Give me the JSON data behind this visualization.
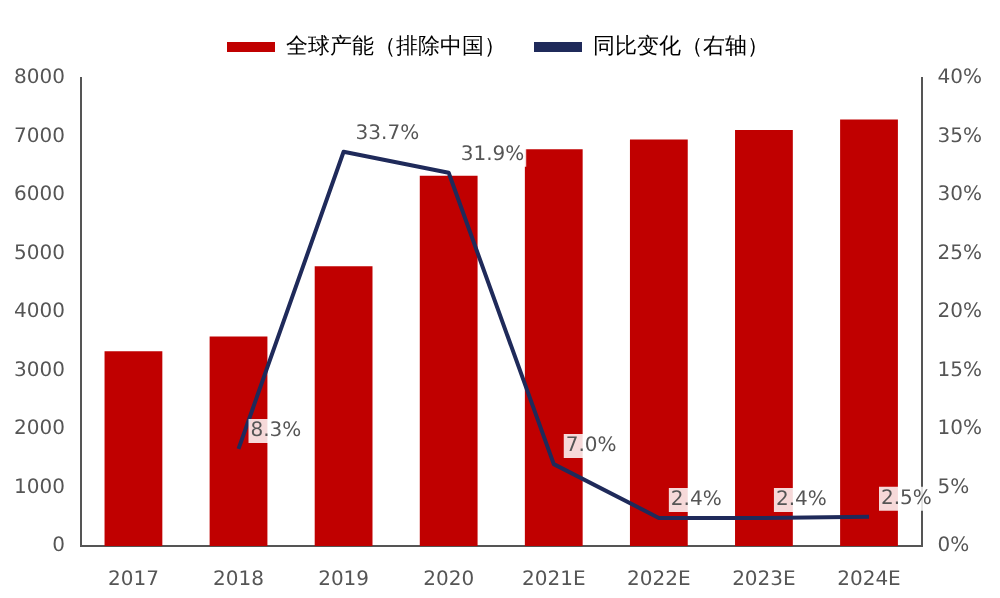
{
  "chart_data": {
    "type": "bar",
    "categories": [
      "2017",
      "2018",
      "2019",
      "2020",
      "2021E",
      "2022E",
      "2023E",
      "2024E"
    ],
    "series": [
      {
        "name": "全球产能（排除中国）",
        "type": "bar",
        "color": "#c00000",
        "values": [
          3330,
          3580,
          4780,
          6330,
          6780,
          6950,
          7110,
          7290
        ]
      },
      {
        "name": "同比变化（右轴）",
        "type": "line",
        "axis": "y2",
        "color": "#1f2a5a",
        "values": [
          null,
          8.3,
          33.7,
          31.9,
          7.0,
          2.4,
          2.4,
          2.5
        ],
        "value_labels": [
          null,
          "8.3%",
          "33.7%",
          "31.9%",
          "7.0%",
          "2.4%",
          "2.4%",
          "2.5%"
        ]
      }
    ],
    "ylim": [
      0,
      8000
    ],
    "yticks": [
      0,
      1000,
      2000,
      3000,
      4000,
      5000,
      6000,
      7000,
      8000
    ],
    "y2lim": [
      0,
      40
    ],
    "y2ticks": [
      {
        "value": 0,
        "label": "0%"
      },
      {
        "value": 5,
        "label": "5%"
      },
      {
        "value": 10,
        "label": "10%"
      },
      {
        "value": 15,
        "label": "15%"
      },
      {
        "value": 20,
        "label": "20%"
      },
      {
        "value": 25,
        "label": "25%"
      },
      {
        "value": 30,
        "label": "30%"
      },
      {
        "value": 35,
        "label": "35%"
      },
      {
        "value": 40,
        "label": "40%"
      }
    ],
    "legend": "top",
    "marker": "none",
    "grid": false
  }
}
